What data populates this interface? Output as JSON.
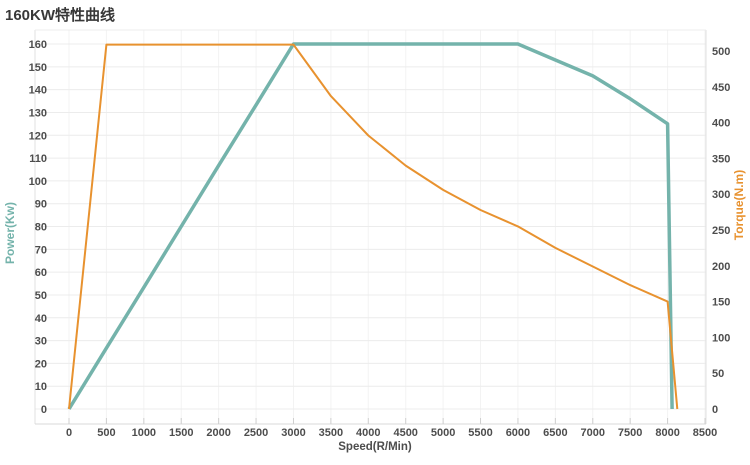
{
  "title": "160KW特性曲线",
  "colors": {
    "power_line": "#74b3ab",
    "torque_line": "#e8922f",
    "tick_label": "#4d4d4d",
    "grid_horizontal": "#ececec",
    "grid_vertical": "#f3f3f3",
    "axis_border": "#e0e0e0",
    "bottom_axis": "#d8d8d8",
    "tick_mark": "#cfcfcf",
    "title_text": "#383838"
  },
  "chart_data": {
    "type": "line",
    "title": "160KW特性曲线",
    "xlabel": "Speed(R/Min)",
    "x_range": [
      0,
      8500
    ],
    "x_ticks": [
      0,
      500,
      1000,
      1500,
      2000,
      2500,
      3000,
      3500,
      4000,
      4500,
      5000,
      5500,
      6000,
      6500,
      7000,
      7500,
      8000,
      8500
    ],
    "grid": true,
    "legend_position": "none",
    "y_left": {
      "label": "Power(Kw)",
      "range": [
        0,
        160
      ],
      "ticks": [
        0,
        10,
        20,
        30,
        40,
        50,
        60,
        70,
        80,
        90,
        100,
        110,
        120,
        130,
        140,
        150,
        160
      ]
    },
    "y_right": {
      "label": "Torque(N.m)",
      "range": [
        0,
        500
      ],
      "ticks": [
        0,
        50,
        100,
        150,
        200,
        250,
        300,
        350,
        400,
        450,
        500
      ]
    },
    "series": [
      {
        "name": "Power(Kw)",
        "axis": "left",
        "color": "#74b3ab",
        "stroke_width": 3.5,
        "points": [
          [
            0,
            0
          ],
          [
            500,
            26.7
          ],
          [
            1000,
            53.3
          ],
          [
            1500,
            80
          ],
          [
            2000,
            106.7
          ],
          [
            2500,
            133.3
          ],
          [
            3000,
            160
          ],
          [
            3500,
            160
          ],
          [
            4000,
            160
          ],
          [
            4500,
            160
          ],
          [
            5000,
            160
          ],
          [
            5500,
            160
          ],
          [
            6000,
            160
          ],
          [
            6500,
            153
          ],
          [
            7000,
            146
          ],
          [
            7500,
            136
          ],
          [
            8000,
            125
          ],
          [
            8060,
            0
          ]
        ]
      },
      {
        "name": "Torque(N.m)",
        "axis": "right",
        "color": "#e8922f",
        "stroke_width": 2,
        "points": [
          [
            0,
            0
          ],
          [
            500,
            509
          ],
          [
            1000,
            509
          ],
          [
            1500,
            509
          ],
          [
            2000,
            509
          ],
          [
            2500,
            509
          ],
          [
            3000,
            509
          ],
          [
            3500,
            437
          ],
          [
            4000,
            382
          ],
          [
            4500,
            340
          ],
          [
            5000,
            306
          ],
          [
            5500,
            278
          ],
          [
            6000,
            255
          ],
          [
            6500,
            225
          ],
          [
            7000,
            199
          ],
          [
            7500,
            173
          ],
          [
            8000,
            150
          ],
          [
            8130,
            0
          ]
        ]
      }
    ]
  }
}
